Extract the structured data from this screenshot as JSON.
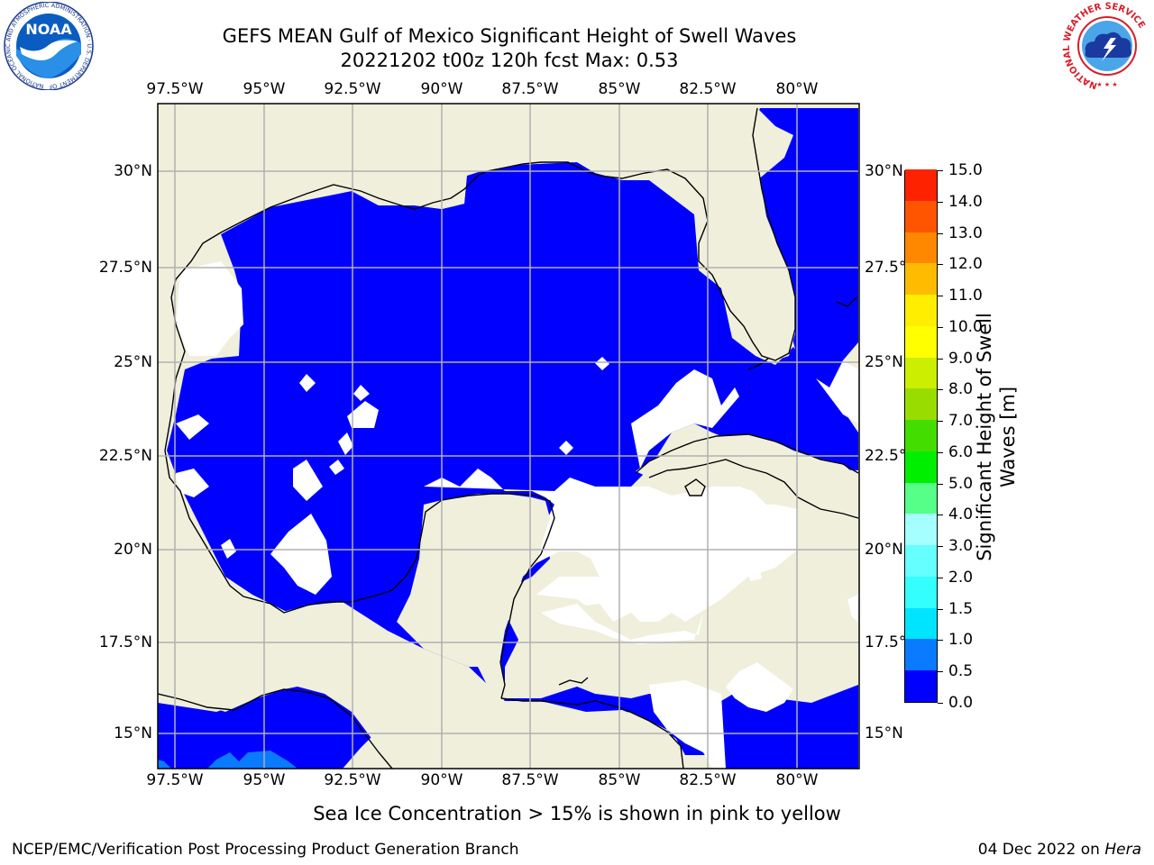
{
  "header": {
    "title_line1": "GEFS MEAN Gulf of Mexico Significant Height of Swell Waves",
    "title_line2": "20221202 t00z 120h fcst   Max: 0.53"
  },
  "logos": {
    "left": {
      "icon": "noaa-logo-icon",
      "text": "NOAA",
      "ring_text": "NATIONAL OCEANIC AND ATMOSPHERIC ADMINISTRATION · U.S. DEPARTMENT OF COMMERCE"
    },
    "right": {
      "icon": "nws-logo-icon",
      "ring_text": "NATIONAL WEATHER SERVICE"
    }
  },
  "map": {
    "lon_ticks": [
      "97.5°W",
      "95°W",
      "92.5°W",
      "90°W",
      "87.5°W",
      "85°W",
      "82.5°W",
      "80°W"
    ],
    "lat_ticks_left": [
      "30°N",
      "27.5°N",
      "25°N",
      "22.5°N",
      "20°N",
      "17.5°N",
      "15°N"
    ],
    "lat_ticks_right": [
      "30°N",
      "27.5°",
      "25°N",
      "22.5°",
      "20°N",
      "17.5°",
      "15°N"
    ],
    "lon_values": [
      -97.5,
      -95,
      -92.5,
      -90,
      -87.5,
      -85,
      -82.5,
      -80
    ],
    "lat_values": [
      30,
      27.5,
      25,
      22.5,
      20,
      17.5,
      15
    ],
    "lon_range": [
      -98,
      -78
    ],
    "lat_range": [
      14,
      31.8
    ],
    "grid": true,
    "colors": {
      "land": "#efefdc",
      "water_field": "#0000ff",
      "no_data": "#ffffff",
      "swell_0_5": "#0a7aff",
      "gridline": "#b0b0b0",
      "coastline": "#000000"
    }
  },
  "colorbar": {
    "label": "Significant Height of Swell Waves [m]",
    "label_line1": "Significant Height of Swell",
    "label_line2": "Waves [m]",
    "ticks": [
      "0.0",
      "0.5",
      "1.0",
      "1.5",
      "2.0",
      "3.0",
      "4.0",
      "5.0",
      "6.0",
      "7.0",
      "8.0",
      "9.0",
      "10.0",
      "11.0",
      "12.0",
      "13.0",
      "14.0",
      "15.0"
    ],
    "colors": [
      "#0000ff",
      "#0a7aff",
      "#00e5ff",
      "#33ffff",
      "#66ffff",
      "#a6ffff",
      "#55ff88",
      "#00ee00",
      "#44dd00",
      "#99dd00",
      "#ccee00",
      "#ffff00",
      "#ffee00",
      "#ffbb00",
      "#ff8800",
      "#ff5500",
      "#ff2200",
      "#ff0000"
    ]
  },
  "caption": "Sea Ice Concentration > 15% is shown in pink to yellow",
  "footer": {
    "left": "NCEP/EMC/Verification Post Processing Product Generation Branch",
    "date": "04 Dec 2022 on ",
    "host": "Hera"
  }
}
